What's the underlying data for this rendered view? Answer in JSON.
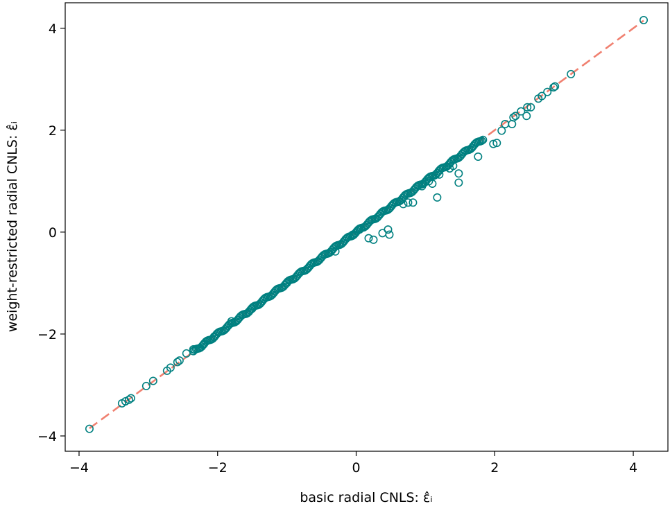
{
  "chart_data": {
    "type": "scatter",
    "title": "",
    "xlabel": "basic radial CNLS: ε̂ᵢ",
    "ylabel": "weight-restricted radial CNLS: ε̂ᵢ",
    "xlim": [
      -4.2,
      4.5
    ],
    "ylim": [
      -4.3,
      4.5
    ],
    "xticks": [
      -4,
      -2,
      0,
      2,
      4
    ],
    "yticks": [
      -4,
      -2,
      0,
      2,
      4
    ],
    "xtick_labels": [
      "−4",
      "−2",
      "0",
      "2",
      "4"
    ],
    "ytick_labels": [
      "−4",
      "−2",
      "0",
      "2",
      "4"
    ],
    "grid": false,
    "colors": {
      "points": "#008080",
      "reference_line": "#F08070"
    },
    "reference_line": {
      "style": "dashed",
      "x": [
        -3.85,
        4.15
      ],
      "y": [
        -3.85,
        4.15
      ]
    },
    "points": [
      [
        4.15,
        4.16
      ],
      [
        3.1,
        3.1
      ],
      [
        2.87,
        2.86
      ],
      [
        2.85,
        2.84
      ],
      [
        2.76,
        2.75
      ],
      [
        2.68,
        2.67
      ],
      [
        2.63,
        2.62
      ],
      [
        2.52,
        2.45
      ],
      [
        2.47,
        2.45
      ],
      [
        2.46,
        2.28
      ],
      [
        2.38,
        2.37
      ],
      [
        2.3,
        2.28
      ],
      [
        2.27,
        2.25
      ],
      [
        2.25,
        2.12
      ],
      [
        2.15,
        2.12
      ],
      [
        2.1,
        1.99
      ],
      [
        2.03,
        1.75
      ],
      [
        1.98,
        1.73
      ],
      [
        1.76,
        1.48
      ],
      [
        1.48,
        1.15
      ],
      [
        1.48,
        0.97
      ],
      [
        1.4,
        1.3
      ],
      [
        1.35,
        1.25
      ],
      [
        1.2,
        1.13
      ],
      [
        1.17,
        0.68
      ],
      [
        1.1,
        0.95
      ],
      [
        1.05,
        1.0
      ],
      [
        0.95,
        0.9
      ],
      [
        0.82,
        0.58
      ],
      [
        0.75,
        0.58
      ],
      [
        0.68,
        0.55
      ],
      [
        0.46,
        0.05
      ],
      [
        0.48,
        -0.05
      ],
      [
        0.38,
        -0.02
      ],
      [
        0.25,
        -0.15
      ],
      [
        0.18,
        -0.12
      ],
      [
        0.05,
        0.05
      ],
      [
        -0.05,
        -0.05
      ],
      [
        -0.3,
        -0.38
      ],
      [
        -1.0,
        -1.0
      ],
      [
        -1.5,
        -1.5
      ],
      [
        -1.8,
        -1.75
      ],
      [
        -2.05,
        -2.05
      ],
      [
        -2.2,
        -2.2
      ],
      [
        -2.35,
        -2.3
      ],
      [
        -2.45,
        -2.38
      ],
      [
        -2.55,
        -2.52
      ],
      [
        -2.58,
        -2.55
      ],
      [
        -2.68,
        -2.66
      ],
      [
        -2.73,
        -2.72
      ],
      [
        -2.93,
        -2.92
      ],
      [
        -3.03,
        -3.02
      ],
      [
        -3.25,
        -3.26
      ],
      [
        -3.28,
        -3.29
      ],
      [
        -3.33,
        -3.32
      ],
      [
        -3.38,
        -3.36
      ],
      [
        -3.85,
        -3.86
      ]
    ]
  }
}
